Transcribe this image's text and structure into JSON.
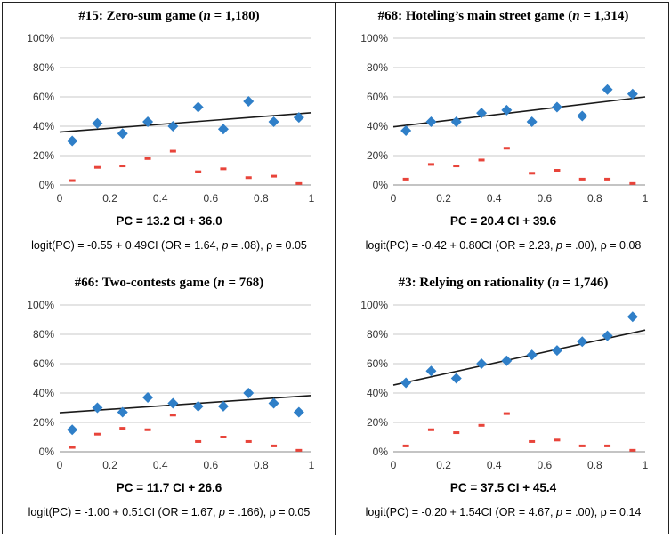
{
  "panels": [
    {
      "title": "#15: Zero-sum game (n = 1,180)",
      "title_prefix": "#15: Zero-sum game (",
      "title_n_symbol": "n",
      "title_n_value": " = 1,180)",
      "equation": "PC = 13.2 CI + 36.0",
      "logit": {
        "part1": "logit(PC) = -0.55 + 0.49CI (OR = 1.64, ",
        "p_symbol": "p",
        "part2": " = .08), ρ = 0.05"
      }
    },
    {
      "title": "#68: Hoteling's main street game (n = 1,314)",
      "title_prefix": "#68: Hoteling’s main street game (",
      "title_n_symbol": "n",
      "title_n_value": " = 1,314)",
      "equation": "PC = 20.4 CI + 39.6",
      "logit": {
        "part1": "logit(PC) = -0.42 + 0.80CI (OR = 2.23, ",
        "p_symbol": "p",
        "part2": " = .00), ρ = 0.08"
      }
    },
    {
      "title": "#66: Two-contests game (n = 768)",
      "title_prefix": "#66: Two-contests game (",
      "title_n_symbol": "n",
      "title_n_value": " = 768)",
      "equation": "PC = 11.7 CI + 26.6",
      "logit": {
        "part1": "logit(PC) = -1.00 + 0.51CI (OR = 1.67, ",
        "p_symbol": "p",
        "part2": " = .166), ρ = 0.05"
      }
    },
    {
      "title": "#3: Relying on rationality (n = 1,746)",
      "title_prefix": "#3: Relying on rationality (",
      "title_n_symbol": "n",
      "title_n_value": " = 1,746)",
      "equation": "PC = 37.5 CI + 45.4",
      "logit": {
        "part1": "logit(PC) = -0.20 + 1.54CI (OR = 4.67, ",
        "p_symbol": "p",
        "part2": " = .00), ρ = 0.14"
      }
    }
  ],
  "chart_data": [
    {
      "type": "scatter",
      "xlim": [
        0,
        1
      ],
      "ylim": [
        0,
        100
      ],
      "x_ticks": [
        "0",
        "0.2",
        "0.4",
        "0.6",
        "0.8",
        "1"
      ],
      "y_ticks": [
        "0%",
        "20%",
        "40%",
        "60%",
        "80%",
        "100%"
      ],
      "grid": true,
      "legend": "none",
      "trendline": {
        "slope": 13.2,
        "intercept": 36.0
      },
      "series": [
        {
          "marker": "diamond",
          "color": "#2f7fc8",
          "x": [
            0.05,
            0.15,
            0.25,
            0.35,
            0.45,
            0.55,
            0.65,
            0.75,
            0.85,
            0.95
          ],
          "y": [
            30,
            42,
            35,
            43,
            40,
            53,
            38,
            57,
            43,
            46
          ]
        },
        {
          "marker": "dash",
          "color": "#e8443a",
          "x": [
            0.05,
            0.15,
            0.25,
            0.35,
            0.45,
            0.55,
            0.65,
            0.75,
            0.85,
            0.95
          ],
          "y": [
            3,
            12,
            13,
            18,
            23,
            9,
            11,
            5,
            6,
            1
          ]
        }
      ]
    },
    {
      "type": "scatter",
      "xlim": [
        0,
        1
      ],
      "ylim": [
        0,
        100
      ],
      "x_ticks": [
        "0",
        "0.2",
        "0.4",
        "0.6",
        "0.8",
        "1"
      ],
      "y_ticks": [
        "0%",
        "20%",
        "40%",
        "60%",
        "80%",
        "100%"
      ],
      "grid": true,
      "legend": "none",
      "trendline": {
        "slope": 20.4,
        "intercept": 39.6
      },
      "series": [
        {
          "marker": "diamond",
          "color": "#2f7fc8",
          "x": [
            0.05,
            0.15,
            0.25,
            0.35,
            0.45,
            0.55,
            0.65,
            0.75,
            0.85,
            0.95
          ],
          "y": [
            37,
            43,
            43,
            49,
            51,
            43,
            53,
            47,
            65,
            62
          ]
        },
        {
          "marker": "dash",
          "color": "#e8443a",
          "x": [
            0.05,
            0.15,
            0.25,
            0.35,
            0.45,
            0.55,
            0.65,
            0.75,
            0.85,
            0.95
          ],
          "y": [
            4,
            14,
            13,
            17,
            25,
            8,
            10,
            4,
            4,
            1
          ]
        }
      ]
    },
    {
      "type": "scatter",
      "xlim": [
        0,
        1
      ],
      "ylim": [
        0,
        100
      ],
      "x_ticks": [
        "0",
        "0.2",
        "0.4",
        "0.6",
        "0.8",
        "1"
      ],
      "y_ticks": [
        "0%",
        "20%",
        "40%",
        "60%",
        "80%",
        "100%"
      ],
      "grid": true,
      "legend": "none",
      "trendline": {
        "slope": 11.7,
        "intercept": 26.6
      },
      "series": [
        {
          "marker": "diamond",
          "color": "#2f7fc8",
          "x": [
            0.05,
            0.15,
            0.25,
            0.35,
            0.45,
            0.55,
            0.65,
            0.75,
            0.85,
            0.95
          ],
          "y": [
            15,
            30,
            27,
            37,
            33,
            31,
            31,
            40,
            33,
            27
          ]
        },
        {
          "marker": "dash",
          "color": "#e8443a",
          "x": [
            0.05,
            0.15,
            0.25,
            0.35,
            0.45,
            0.55,
            0.65,
            0.75,
            0.85,
            0.95
          ],
          "y": [
            3,
            12,
            16,
            15,
            25,
            7,
            10,
            7,
            4,
            1
          ]
        }
      ]
    },
    {
      "type": "scatter",
      "xlim": [
        0,
        1
      ],
      "ylim": [
        0,
        100
      ],
      "x_ticks": [
        "0",
        "0.2",
        "0.4",
        "0.6",
        "0.8",
        "1"
      ],
      "y_ticks": [
        "0%",
        "20%",
        "40%",
        "60%",
        "80%",
        "100%"
      ],
      "grid": true,
      "legend": "none",
      "trendline": {
        "slope": 37.5,
        "intercept": 45.4
      },
      "series": [
        {
          "marker": "diamond",
          "color": "#2f7fc8",
          "x": [
            0.05,
            0.15,
            0.25,
            0.35,
            0.45,
            0.55,
            0.65,
            0.75,
            0.85,
            0.95
          ],
          "y": [
            47,
            55,
            50,
            60,
            62,
            66,
            69,
            75,
            79,
            92
          ]
        },
        {
          "marker": "dash",
          "color": "#e8443a",
          "x": [
            0.05,
            0.15,
            0.25,
            0.35,
            0.45,
            0.55,
            0.65,
            0.75,
            0.85,
            0.95
          ],
          "y": [
            4,
            15,
            13,
            18,
            26,
            7,
            8,
            4,
            4,
            1
          ]
        }
      ]
    }
  ]
}
